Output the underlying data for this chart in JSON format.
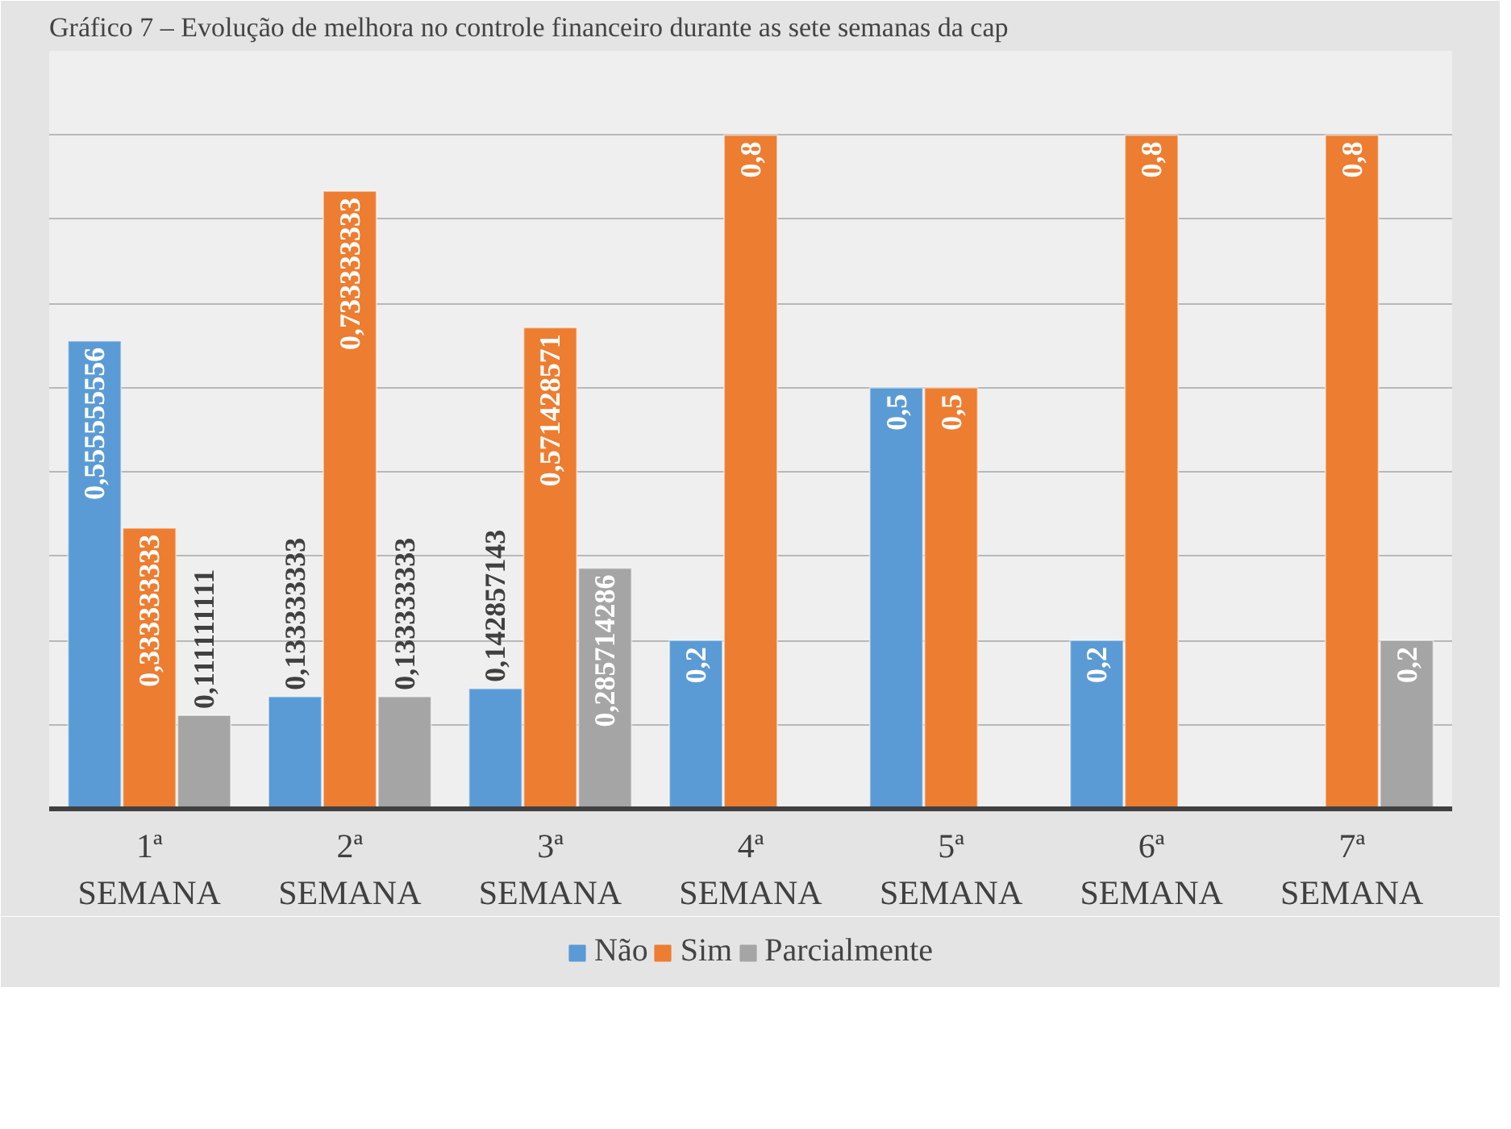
{
  "chart_data": {
    "type": "bar",
    "title": "Gráfico 7 – Evolução de melhora no controle financeiro durante as sete semanas da cap",
    "categories": [
      "1ª SEMANA",
      "2ª SEMANA",
      "3ª SEMANA",
      "4ª SEMANA",
      "5ª SEMANA",
      "6ª SEMANA",
      "7ª SEMANA"
    ],
    "series": [
      {
        "name": "Não",
        "color": "#5b9bd5",
        "values": [
          0.555555556,
          0.133333333,
          0.142857143,
          0.2,
          0.5,
          0.2,
          null
        ],
        "value_labels": [
          "0,555555556",
          "0,133333333",
          "0,142857143",
          "0,2",
          "0,5",
          "0,2",
          null
        ]
      },
      {
        "name": "Sim",
        "color": "#ed7d31",
        "values": [
          0.333333333,
          0.733333333,
          0.571428571,
          0.8,
          0.5,
          0.8,
          0.8
        ],
        "value_labels": [
          "0,333333333",
          "0,733333333",
          "0,571428571",
          "0,8",
          "0,5",
          "0,8",
          "0,8"
        ]
      },
      {
        "name": "Parcialmente",
        "color": "#a5a5a5",
        "values": [
          0.111111111,
          0.133333333,
          0.285714286,
          null,
          null,
          null,
          0.2
        ],
        "value_labels": [
          "0,111111111",
          "0,133333333",
          "0,285714286",
          null,
          null,
          null,
          "0,2"
        ]
      }
    ],
    "ylim": [
      0,
      0.9
    ],
    "yticks": [
      {
        "value": 0,
        "label": null
      },
      {
        "value": 0.1,
        "label": null
      },
      {
        "value": 0.2,
        "label": null
      },
      {
        "value": 0.3,
        "label": null
      },
      {
        "value": 0.4,
        "label": null
      },
      {
        "value": 0.5,
        "label": null
      },
      {
        "value": 0.6,
        "label": null
      },
      {
        "value": 0.7,
        "label": null
      },
      {
        "value": 0.8,
        "label": null
      },
      {
        "value": 0.9,
        "label": null
      }
    ],
    "grid": "y",
    "legend": "bottom",
    "tick_labels": "x"
  }
}
